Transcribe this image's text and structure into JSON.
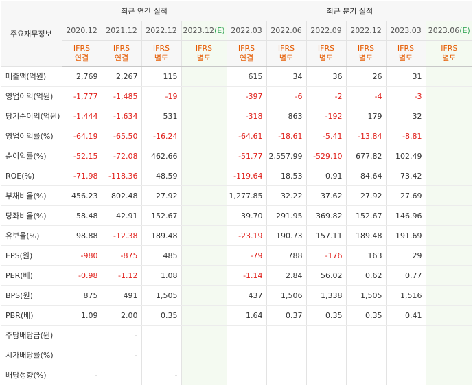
{
  "header": {
    "row_label": "주요재무정보",
    "annual_title": "최근 연간 실적",
    "quarterly_title": "최근 분기 실적",
    "annual_periods": [
      {
        "date": "2020.12",
        "est": "",
        "type1": "IFRS",
        "type2": "연결"
      },
      {
        "date": "2021.12",
        "est": "",
        "type1": "IFRS",
        "type2": "연결"
      },
      {
        "date": "2022.12",
        "est": "",
        "type1": "IFRS",
        "type2": "별도"
      },
      {
        "date": "2023.12",
        "est": "(E)",
        "type1": "IFRS",
        "type2": "별도"
      }
    ],
    "quarterly_periods": [
      {
        "date": "2022.03",
        "est": "",
        "type1": "IFRS",
        "type2": "연결"
      },
      {
        "date": "2022.06",
        "est": "",
        "type1": "IFRS",
        "type2": "별도"
      },
      {
        "date": "2022.09",
        "est": "",
        "type1": "IFRS",
        "type2": "별도"
      },
      {
        "date": "2022.12",
        "est": "",
        "type1": "IFRS",
        "type2": "별도"
      },
      {
        "date": "2023.03",
        "est": "",
        "type1": "IFRS",
        "type2": "별도"
      },
      {
        "date": "2023.06",
        "est": "(E)",
        "type1": "IFRS",
        "type2": "별도"
      }
    ]
  },
  "rows": [
    {
      "label": "매출액(억원)",
      "values": [
        "2,769",
        "2,267",
        "115",
        "",
        "615",
        "34",
        "36",
        "26",
        "31",
        ""
      ]
    },
    {
      "label": "영업이익(억원)",
      "values": [
        "-1,777",
        "-1,485",
        "-19",
        "",
        "-397",
        "-6",
        "-2",
        "-4",
        "-3",
        ""
      ]
    },
    {
      "label": "당기순이익(억원)",
      "values": [
        "-1,444",
        "-1,634",
        "531",
        "",
        "-318",
        "863",
        "-192",
        "179",
        "32",
        ""
      ]
    },
    {
      "label": "영업이익률(%)",
      "values": [
        "-64.19",
        "-65.50",
        "-16.24",
        "",
        "-64.61",
        "-18.61",
        "-5.41",
        "-13.84",
        "-8.81",
        ""
      ]
    },
    {
      "label": "순이익률(%)",
      "values": [
        "-52.15",
        "-72.08",
        "462.66",
        "",
        "-51.77",
        "2,557.99",
        "-529.10",
        "677.82",
        "102.49",
        ""
      ]
    },
    {
      "label": "ROE(%)",
      "values": [
        "-71.98",
        "-118.36",
        "48.59",
        "",
        "-119.64",
        "18.53",
        "0.91",
        "84.64",
        "73.42",
        ""
      ]
    },
    {
      "label": "부채비율(%)",
      "values": [
        "456.23",
        "802.48",
        "27.92",
        "",
        "1,277.85",
        "32.22",
        "37.62",
        "27.92",
        "27.69",
        ""
      ]
    },
    {
      "label": "당좌비율(%)",
      "values": [
        "58.48",
        "42.91",
        "152.67",
        "",
        "39.70",
        "291.95",
        "369.82",
        "152.67",
        "146.96",
        ""
      ]
    },
    {
      "label": "유보율(%)",
      "values": [
        "98.88",
        "-12.38",
        "189.48",
        "",
        "-23.19",
        "190.73",
        "157.11",
        "189.48",
        "191.69",
        ""
      ]
    },
    {
      "label": "EPS(원)",
      "values": [
        "-980",
        "-875",
        "485",
        "",
        "-79",
        "788",
        "-176",
        "163",
        "29",
        ""
      ]
    },
    {
      "label": "PER(배)",
      "values": [
        "-0.98",
        "-1.12",
        "1.08",
        "",
        "-1.14",
        "2.84",
        "56.02",
        "0.62",
        "0.77",
        ""
      ]
    },
    {
      "label": "BPS(원)",
      "values": [
        "875",
        "491",
        "1,505",
        "",
        "437",
        "1,506",
        "1,338",
        "1,505",
        "1,516",
        ""
      ]
    },
    {
      "label": "PBR(배)",
      "values": [
        "1.09",
        "2.00",
        "0.35",
        "",
        "1.64",
        "0.37",
        "0.35",
        "0.35",
        "0.41",
        ""
      ]
    },
    {
      "label": "주당배당금(원)",
      "values": [
        "",
        "-",
        "",
        "",
        "",
        "",
        "",
        "",
        "",
        ""
      ]
    },
    {
      "label": "시가배당률(%)",
      "values": [
        "",
        "-",
        "",
        "",
        "",
        "",
        "",
        "",
        "",
        ""
      ]
    },
    {
      "label": "배당성향(%)",
      "values": [
        "-",
        "",
        "-",
        "",
        "",
        "",
        "",
        "",
        "",
        ""
      ]
    }
  ],
  "colors": {
    "negative": "#e0201b",
    "ifrs_label": "#e55a00",
    "estimate_marker": "#3aa85b",
    "estimate_bg": "#f4faf1",
    "header_bg": "#f7f7f7"
  }
}
